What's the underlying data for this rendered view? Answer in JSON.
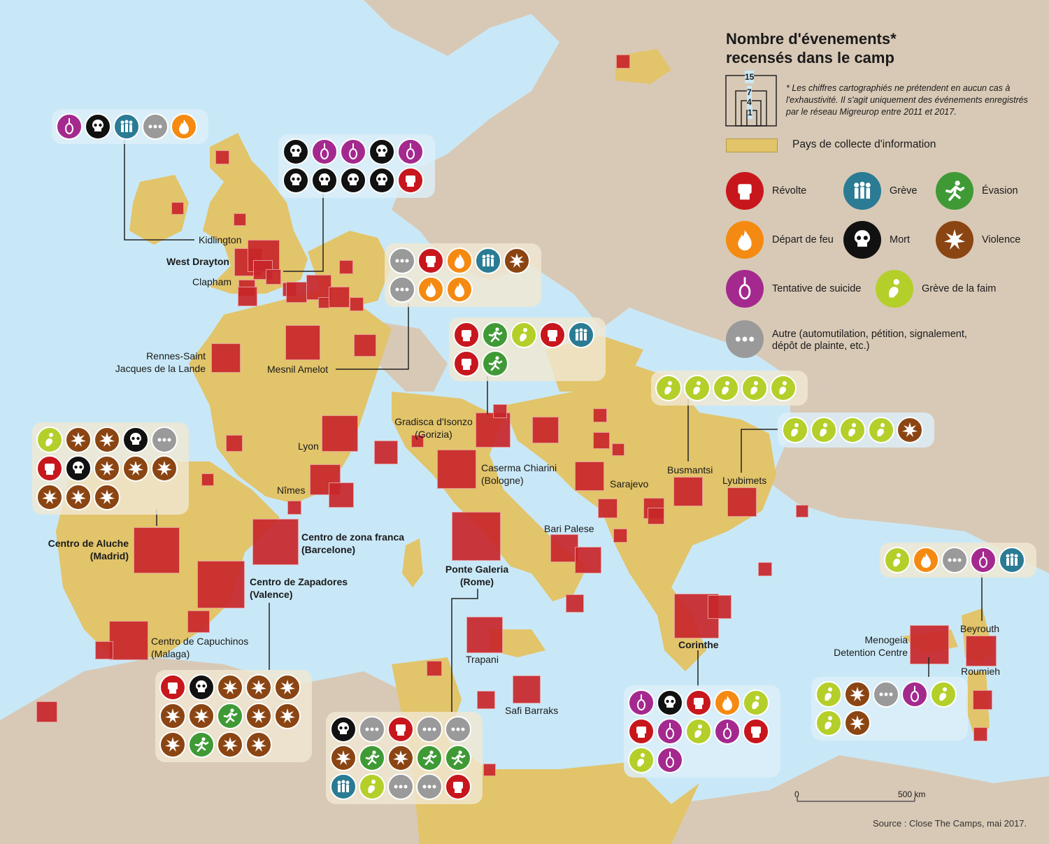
{
  "colors": {
    "sea": "#c9e8f7",
    "land_other": "#d8c9b6",
    "land_collect": "#e2c46a",
    "square": "#c8262a",
    "revolte": "#c8161d",
    "grève": "#2a7b93",
    "evasion": "#3f9a36",
    "feu": "#f58a12",
    "mort": "#111111",
    "violence": "#8b4513",
    "suicide": "#a4298e",
    "faim": "#b4cf2a",
    "autre": "#9a9a9a"
  },
  "legend": {
    "title_line1": "Nombre d'évenements*",
    "title_line2": "recensés dans le camp",
    "scale_values": [
      "15",
      "7",
      "4",
      "1"
    ],
    "note": "* Les chiffres cartographiés ne prétendent en aucun cas à l'exhaustivité. Il s'agit uniquement des événements enregistrés par le réseau Migreurop entre 2011 et 2017.",
    "collect_label": "Pays de collecte d'information",
    "items": {
      "revolte": "Révolte",
      "greve": "Grève",
      "evasion": "Évasion",
      "feu": "Départ de feu",
      "mort": "Mort",
      "violence": "Violence",
      "suicide": "Tentative de suicide",
      "faim": "Grève de la faim",
      "autre_line1": "Autre (automutilation, pétition, signalement,",
      "autre_line2": "dépôt de plainte, etc.)"
    }
  },
  "labels": {
    "kidlington": "Kidlington",
    "west_drayton": "West Drayton",
    "clapham": "Clapham",
    "rennes_1": "Rennes-Saint",
    "rennes_2": "Jacques de la Lande",
    "mesnil": "Mesnil Amelot",
    "lyon": "Lyon",
    "nimes": "Nîmes",
    "gradisca_1": "Gradisca d'Isonzo",
    "gradisca_2": "(Gorizia)",
    "caserma_1": "Caserma Chiarini",
    "caserma_2": "(Bologne)",
    "sarajevo": "Sarajevo",
    "busmantsi": "Busmantsi",
    "lyubimets": "Lyubimets",
    "bari": "Bari Palese",
    "aluche_1": "Centro de Aluche",
    "aluche_2": "(Madrid)",
    "zona_1": "Centro de zona franca",
    "zona_2": "(Barcelone)",
    "zapadores_1": "Centro de Zapadores",
    "zapadores_2": "(Valence)",
    "capuchinos_1": "Centro de Capuchinos",
    "capuchinos_2": "(Malaga)",
    "ponte_1": "Ponte Galeria",
    "ponte_2": "(Rome)",
    "trapani": "Trapani",
    "safi": "Safi Barraks",
    "corinthe": "Corinthe",
    "menogeia_1": "Menogeia",
    "menogeia_2": "Detention Centre",
    "beyrouth": "Beyrouth",
    "roumieh": "Roumieh"
  },
  "scalebar": {
    "zero": "0",
    "km": "500 km"
  },
  "source": "Source : Close The Camps, mai 2017.",
  "panels": [
    {
      "id": "kidlington",
      "icons": [
        "suicide",
        "mort",
        "greve",
        "autre",
        "feu"
      ]
    },
    {
      "id": "west-drayton",
      "icons": [
        "mort",
        "suicide",
        "suicide",
        "mort",
        "suicide",
        "mort",
        "mort",
        "mort",
        "mort",
        "revolte"
      ]
    },
    {
      "id": "mesnil",
      "icons": [
        "autre",
        "revolte",
        "feu",
        "greve",
        "violence",
        "autre",
        "feu",
        "feu"
      ]
    },
    {
      "id": "gradisca",
      "icons": [
        "revolte",
        "evasion",
        "faim",
        "revolte",
        "greve",
        "revolte",
        "evasion"
      ]
    },
    {
      "id": "busmantsi",
      "icons": [
        "faim",
        "faim",
        "faim",
        "faim",
        "faim"
      ]
    },
    {
      "id": "lyubimets",
      "icons": [
        "faim",
        "faim",
        "faim",
        "faim",
        "violence"
      ]
    },
    {
      "id": "aluche",
      "icons": [
        "faim",
        "violence",
        "violence",
        "mort",
        "autre",
        "revolte",
        "mort",
        "violence",
        "violence",
        "violence",
        "violence",
        "violence",
        "violence"
      ]
    },
    {
      "id": "zapadores",
      "icons": [
        "revolte",
        "mort",
        "violence",
        "violence",
        "violence",
        "violence",
        "violence",
        "evasion",
        "violence",
        "violence",
        "violence",
        "evasion",
        "violence",
        "violence"
      ]
    },
    {
      "id": "ponte",
      "icons": [
        "mort",
        "autre",
        "revolte",
        "autre",
        "autre",
        "violence",
        "evasion",
        "violence",
        "evasion",
        "evasion",
        "greve",
        "faim",
        "autre",
        "autre",
        "revolte"
      ]
    },
    {
      "id": "corinthe",
      "icons": [
        "suicide",
        "mort",
        "revolte",
        "feu",
        "faim",
        "revolte",
        "suicide",
        "faim",
        "suicide",
        "revolte",
        "faim",
        "suicide"
      ]
    },
    {
      "id": "beyrouth",
      "icons": [
        "faim",
        "feu",
        "autre",
        "suicide",
        "greve"
      ]
    },
    {
      "id": "menogeia",
      "icons": [
        "faim",
        "violence",
        "autre",
        "suicide",
        "faim",
        "faim",
        "violence"
      ]
    }
  ]
}
